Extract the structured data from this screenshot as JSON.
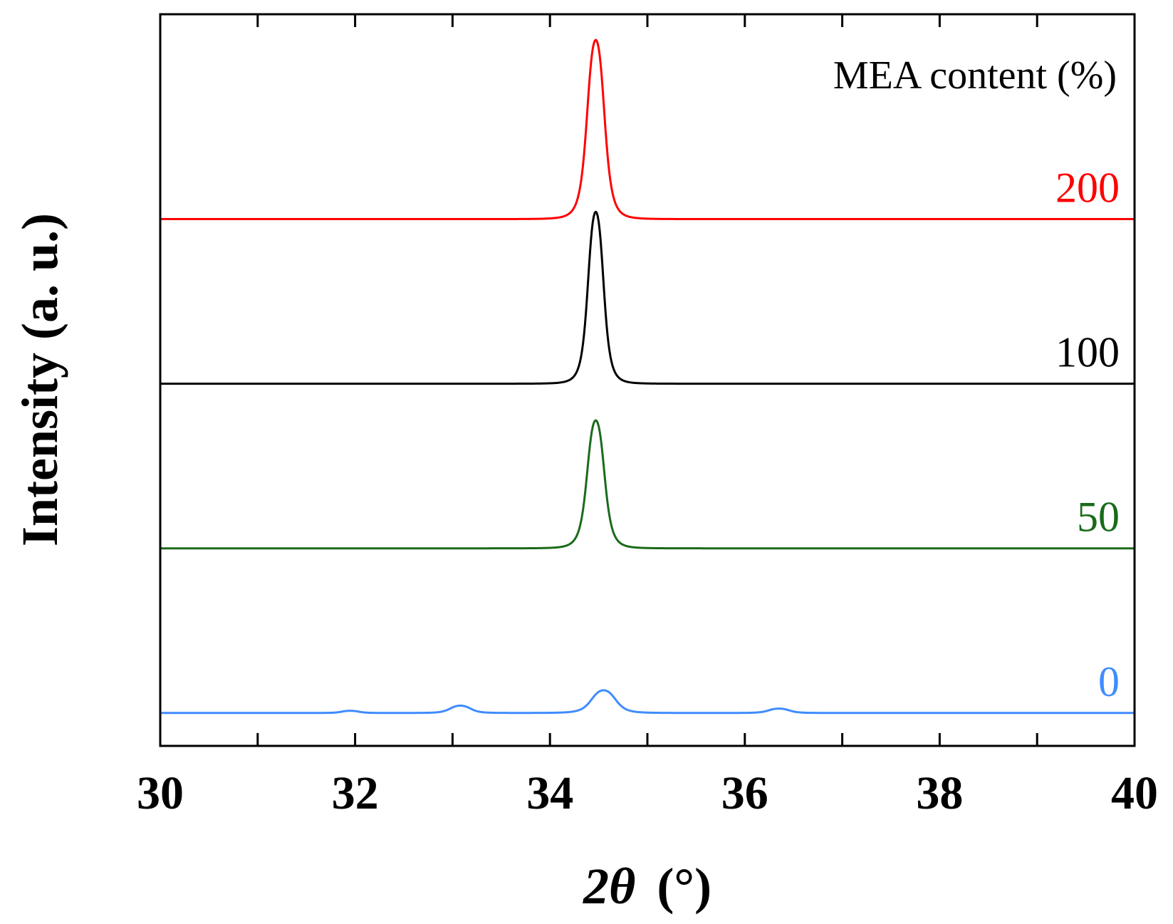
{
  "chart_data": {
    "type": "line",
    "title": "",
    "xlabel": "2θ (°)",
    "xlabel_parts": {
      "symbol": "2θ",
      "unit": "(°)"
    },
    "ylabel": "Intensity (a. u.)",
    "xlim": [
      30,
      40
    ],
    "ylim": [
      0,
      1
    ],
    "x_ticks": [
      30,
      32,
      34,
      36,
      38,
      40
    ],
    "x_minor_ticks": [
      31,
      33,
      35,
      37,
      39
    ],
    "grid": false,
    "legend_title": "MEA content (%)",
    "legend_placement": "top-right",
    "series": [
      {
        "name": "200",
        "color": "#ff0000",
        "baseline": 0.72,
        "peaks": [
          {
            "center": 34.47,
            "height": 0.245,
            "width": 0.1
          }
        ]
      },
      {
        "name": "100",
        "color": "#000000",
        "baseline": 0.495,
        "peaks": [
          {
            "center": 34.47,
            "height": 0.235,
            "width": 0.09
          }
        ]
      },
      {
        "name": "50",
        "color": "#1a6b1a",
        "baseline": 0.27,
        "peaks": [
          {
            "center": 34.47,
            "height": 0.175,
            "width": 0.1
          }
        ]
      },
      {
        "name": "0",
        "color": "#3f8cff",
        "baseline": 0.045,
        "peaks": [
          {
            "center": 34.55,
            "height": 0.031,
            "width": 0.14
          },
          {
            "center": 33.08,
            "height": 0.01,
            "width": 0.12
          },
          {
            "center": 36.35,
            "height": 0.006,
            "width": 0.12
          },
          {
            "center": 31.95,
            "height": 0.003,
            "width": 0.1
          }
        ]
      }
    ]
  }
}
